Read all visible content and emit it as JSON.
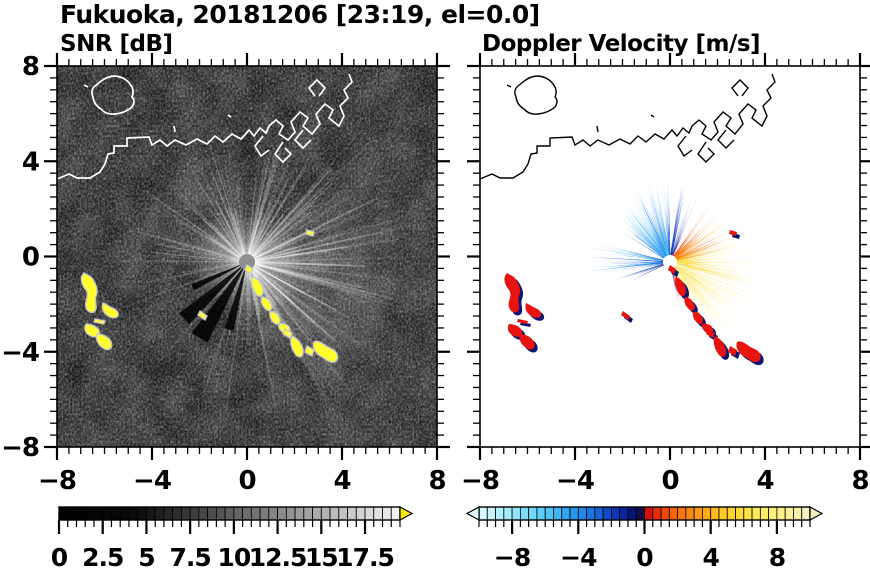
{
  "header": {
    "title": "Fukuoka, 20181206 [23:19, el=0.0]"
  },
  "panels": {
    "snr": {
      "title": "SNR [dB]"
    },
    "velocity": {
      "title": "Doppler Velocity [m/s]"
    }
  },
  "colors": {
    "background": "#ffffff",
    "text": "#000000",
    "snr_background": "#000000",
    "coast_snr": "#ffffff",
    "coast_velocity": "#000000",
    "clutter_yellow": "#ffff2e",
    "clutter_halo": "#c8c8c8",
    "echo_red": "#e81410",
    "echo_navy": "#0a1670",
    "center_disk_snr": "#8f8f8f",
    "center_disk_velocity": "#ffffff"
  },
  "chart_data": [
    {
      "type": "heatmap",
      "title": "SNR [dB]",
      "units": "dB",
      "xlim": [
        -8,
        8
      ],
      "ylim": [
        -8,
        8
      ],
      "xticks": [
        -8,
        -4,
        0,
        4,
        8
      ],
      "yticks": [
        8,
        4,
        0,
        -4,
        -8
      ],
      "xtick_labels": [
        "−8",
        "−4",
        "0",
        "4",
        "8"
      ],
      "ytick_labels": [
        "8",
        "4",
        "0",
        "−4",
        "−8"
      ],
      "minor_tick_step": 0.5,
      "grid": false,
      "radar_center": [
        0,
        -0.2
      ],
      "colorbar": {
        "vmin": 0,
        "vmax": 19.5,
        "cell_step": 0.5,
        "ticks": [
          0,
          2.5,
          5,
          7.5,
          10,
          12.5,
          15,
          17.5
        ],
        "tick_labels": [
          "0",
          "2.5",
          "5",
          "7.5",
          "10",
          "12.5",
          "15",
          "17.5"
        ],
        "ramp_stops": [
          [
            0,
            "#000000"
          ],
          [
            4.5,
            "#0b0b0b"
          ],
          [
            19.5,
            "#f5f5f5"
          ]
        ],
        "over_arrow_color": "#ffec00"
      },
      "features": [
        "black speckled noise background over the full 16x16 km domain",
        "white coastline of Hakata Bay with island (NW) and angular port piers (NE)",
        "bright radial ground-clutter streaks centered on the radar at (0,-0.2)",
        "saturated clutter arcs (yellow, above scale max) near (-7,-0.5) to (-6,-3.5)",
        "chain of strong echoes from the radar toward (3.5,-4)"
      ],
      "render": {
        "ray_sectors": [
          {
            "a0": -80,
            "a1": 50,
            "n": 64,
            "rmin": 40,
            "rmax": 195,
            "wmin": 0.8,
            "wmax": 2.2,
            "omin": 0.1,
            "omax": 0.45
          },
          {
            "a0": 50,
            "a1": 95,
            "n": 20,
            "rmin": 30,
            "rmax": 125,
            "wmin": 0.8,
            "wmax": 1.8,
            "omin": 0.08,
            "omax": 0.32
          },
          {
            "a0": 95,
            "a1": 175,
            "n": 30,
            "rmin": 40,
            "rmax": 130,
            "wmin": 0.8,
            "wmax": 2.0,
            "omin": 0.08,
            "omax": 0.35
          },
          {
            "a0": 175,
            "a1": 265,
            "n": 16,
            "rmin": 50,
            "rmax": 175,
            "wmin": 0.7,
            "wmax": 1.5,
            "omin": 0.06,
            "omax": 0.25
          },
          {
            "a0": 265,
            "a1": 280,
            "n": 6,
            "rmin": 30,
            "rmax": 90,
            "wmin": 0.8,
            "wmax": 1.5,
            "omin": 0.08,
            "omax": 0.2
          }
        ],
        "bright_cones": [
          {
            "a0": -78,
            "a1": 48,
            "r": 200,
            "opacity": 0.1
          },
          {
            "a0": -60,
            "a1": 20,
            "r": 150,
            "opacity": 0.1
          },
          {
            "a0": 95,
            "a1": 170,
            "r": 110,
            "opacity": 0.08
          }
        ],
        "dark_wedges": [
          {
            "a": 205,
            "w": 3,
            "r": 60
          },
          {
            "a": 222,
            "w": 5,
            "r": 85
          },
          {
            "a": 238,
            "w": 6,
            "r": 90
          },
          {
            "a": 255,
            "w": 4,
            "r": 70
          }
        ]
      }
    },
    {
      "type": "heatmap",
      "title": "Doppler Velocity [m/s]",
      "units": "m/s",
      "xlim": [
        -8,
        8
      ],
      "ylim": [
        -8,
        8
      ],
      "xticks": [
        -8,
        -4,
        0,
        4,
        8
      ],
      "yticks": [
        8,
        4,
        0,
        -4,
        -8
      ],
      "xtick_labels": [
        "−8",
        "−4",
        "0",
        "4",
        "8"
      ],
      "ytick_labels": [
        "8",
        "4",
        "0",
        "−4",
        "−8"
      ],
      "minor_tick_step": 0.5,
      "grid": false,
      "radar_center": [
        0,
        -0.2
      ],
      "colorbar": {
        "vmin": -10,
        "vmax": 10,
        "cell_step": 0.5,
        "ticks": [
          -8,
          -4,
          0,
          4,
          8
        ],
        "tick_labels": [
          "−8",
          "−4",
          "0",
          "4",
          "8"
        ],
        "ramp_stops": [
          [
            -10,
            "#dff9ff"
          ],
          [
            -8,
            "#9ae9ff"
          ],
          [
            -6,
            "#55ccf8"
          ],
          [
            -4.5,
            "#28a0ee"
          ],
          [
            -3,
            "#1a6ee0"
          ],
          [
            -2,
            "#0f3fc0"
          ],
          [
            -1,
            "#081e8e"
          ],
          [
            -0.3,
            "#040b50"
          ],
          [
            0.3,
            "#e31107"
          ],
          [
            1.5,
            "#f4590a"
          ],
          [
            3,
            "#fb9312"
          ],
          [
            4.5,
            "#ffc41f"
          ],
          [
            6,
            "#ffdf3d"
          ],
          [
            7.5,
            "#fff06e"
          ],
          [
            9,
            "#f9f0a0"
          ],
          [
            10,
            "#f6efc6"
          ]
        ],
        "under_arrow_color": "#dff9ff",
        "over_arrow_color": "#f6efc6"
      },
      "features": [
        "white background where there is no echo",
        "black coastline identical to SNR panel",
        "approaching flow (negative, cyan-blue-navy) in a fan NW to N of the radar",
        "receding flow (positive, red-orange-yellow to cream) E to SE of the radar",
        "clutter patches rendered red with navy fringes west near (-7,-1) and along the echo chain to (3.5,-4)"
      ],
      "render": {
        "sectors": [
          {
            "a0": 66,
            "a1": 88,
            "rmin": 25,
            "rmax": 82,
            "n": 26,
            "colors": [
              "#081e8e",
              "#0f3fc0",
              "#123ad0"
            ]
          },
          {
            "a0": 88,
            "a1": 118,
            "rmin": 18,
            "rmax": 88,
            "n": 46,
            "colors": [
              "#1a6ee0",
              "#2892ec",
              "#1552d4"
            ]
          },
          {
            "a0": 96,
            "a1": 138,
            "rmin": 45,
            "rmax": 92,
            "n": 40,
            "colors": [
              "#55ccf8",
              "#7adcff",
              "#38b0f2"
            ]
          },
          {
            "a0": 118,
            "a1": 150,
            "rmin": 20,
            "rmax": 70,
            "n": 28,
            "colors": [
              "#2892ec",
              "#55ccf8",
              "#1a6ee0"
            ]
          },
          {
            "a0": 163,
            "a1": 190,
            "rmin": 25,
            "rmax": 88,
            "n": 34,
            "colors": [
              "#1552d4",
              "#2892ec",
              "#55ccf8"
            ]
          },
          {
            "a0": 190,
            "a1": 206,
            "rmin": 25,
            "rmax": 62,
            "n": 10,
            "colors": [
              "#0f3fc0",
              "#081e8e"
            ]
          },
          {
            "a0": 38,
            "a1": 66,
            "rmin": 12,
            "rmax": 48,
            "n": 26,
            "colors": [
              "#e31107",
              "#f4590a"
            ]
          },
          {
            "a0": 8,
            "a1": 56,
            "rmin": 25,
            "rmax": 80,
            "n": 42,
            "colors": [
              "#f4590a",
              "#fb9312",
              "#ffc41f"
            ]
          },
          {
            "a0": -18,
            "a1": 12,
            "rmin": 15,
            "rmax": 105,
            "n": 52,
            "colors": [
              "#ffc41f",
              "#ffdf3d",
              "#fff06e"
            ]
          },
          {
            "a0": -62,
            "a1": -14,
            "rmin": 15,
            "rmax": 95,
            "n": 62,
            "colors": [
              "#ffdf3d",
              "#fff06e",
              "#ffd21a"
            ]
          },
          {
            "a0": -58,
            "a1": -8,
            "rmin": 70,
            "rmax": 118,
            "n": 40,
            "colors": [
              "#f9f0a0",
              "#f6efc6",
              "#fff7b8"
            ]
          },
          {
            "a0": -80,
            "a1": -62,
            "rmin": 25,
            "rmax": 62,
            "n": 10,
            "colors": [
              "#081e8e",
              "#e31107"
            ]
          }
        ]
      }
    }
  ]
}
